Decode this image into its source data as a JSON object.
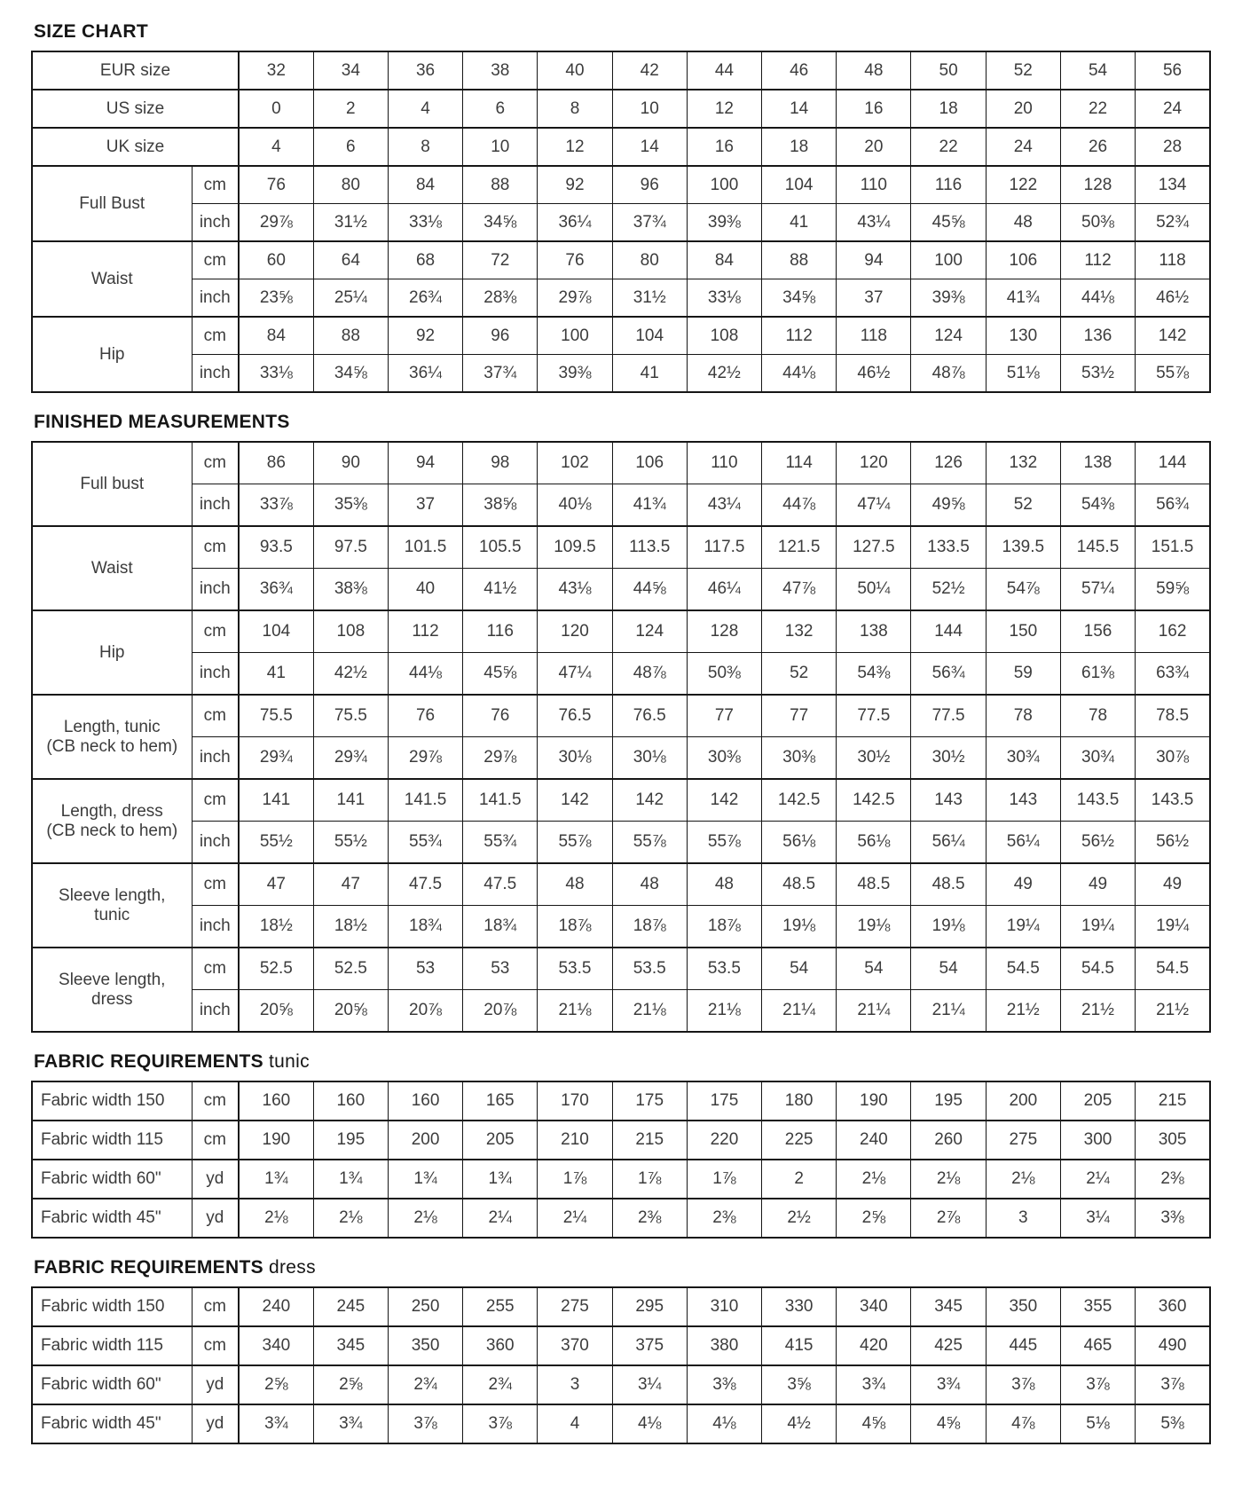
{
  "page": {
    "background": "#ffffff",
    "border_color": "#161616",
    "text_color": "#3c3c3c"
  },
  "sections": [
    {
      "id": "size-chart",
      "css": "sec-size",
      "title_main": "SIZE CHART",
      "title_suffix": "",
      "groups": [
        {
          "label": "EUR size",
          "sub": [
            {
              "unit": null,
              "values": [
                "32",
                "34",
                "36",
                "38",
                "40",
                "42",
                "44",
                "46",
                "48",
                "50",
                "52",
                "54",
                "56"
              ]
            }
          ]
        },
        {
          "label": "US size",
          "sub": [
            {
              "unit": null,
              "values": [
                "0",
                "2",
                "4",
                "6",
                "8",
                "10",
                "12",
                "14",
                "16",
                "18",
                "20",
                "22",
                "24"
              ]
            }
          ]
        },
        {
          "label": "UK size",
          "sub": [
            {
              "unit": null,
              "values": [
                "4",
                "6",
                "8",
                "10",
                "12",
                "14",
                "16",
                "18",
                "20",
                "22",
                "24",
                "26",
                "28"
              ]
            }
          ]
        },
        {
          "label": "Full Bust",
          "sub": [
            {
              "unit": "cm",
              "values": [
                "76",
                "80",
                "84",
                "88",
                "92",
                "96",
                "100",
                "104",
                "110",
                "116",
                "122",
                "128",
                "134"
              ]
            },
            {
              "unit": "inch",
              "values": [
                "29⅞",
                "31½",
                "33⅛",
                "34⅝",
                "36¼",
                "37¾",
                "39⅜",
                "41",
                "43¼",
                "45⅝",
                "48",
                "50⅜",
                "52¾"
              ]
            }
          ]
        },
        {
          "label": "Waist",
          "sub": [
            {
              "unit": "cm",
              "values": [
                "60",
                "64",
                "68",
                "72",
                "76",
                "80",
                "84",
                "88",
                "94",
                "100",
                "106",
                "112",
                "118"
              ]
            },
            {
              "unit": "inch",
              "values": [
                "23⅝",
                "25¼",
                "26¾",
                "28⅜",
                "29⅞",
                "31½",
                "33⅛",
                "34⅝",
                "37",
                "39⅜",
                "41¾",
                "44⅛",
                "46½"
              ]
            }
          ]
        },
        {
          "label": "Hip",
          "sub": [
            {
              "unit": "cm",
              "values": [
                "84",
                "88",
                "92",
                "96",
                "100",
                "104",
                "108",
                "112",
                "118",
                "124",
                "130",
                "136",
                "142"
              ]
            },
            {
              "unit": "inch",
              "values": [
                "33⅛",
                "34⅝",
                "36¼",
                "37¾",
                "39⅜",
                "41",
                "42½",
                "44⅛",
                "46½",
                "48⅞",
                "51⅛",
                "53½",
                "55⅞"
              ]
            }
          ]
        }
      ]
    },
    {
      "id": "finished-measurements",
      "css": "sec-finished",
      "title_main": "FINISHED MEASUREMENTS",
      "title_suffix": "",
      "groups": [
        {
          "label": "Full bust",
          "sub": [
            {
              "unit": "cm",
              "values": [
                "86",
                "90",
                "94",
                "98",
                "102",
                "106",
                "110",
                "114",
                "120",
                "126",
                "132",
                "138",
                "144"
              ]
            },
            {
              "unit": "inch",
              "values": [
                "33⅞",
                "35⅜",
                "37",
                "38⅝",
                "40⅛",
                "41¾",
                "43¼",
                "44⅞",
                "47¼",
                "49⅝",
                "52",
                "54⅜",
                "56¾"
              ]
            }
          ]
        },
        {
          "label": "Waist",
          "sub": [
            {
              "unit": "cm",
              "values": [
                "93.5",
                "97.5",
                "101.5",
                "105.5",
                "109.5",
                "113.5",
                "117.5",
                "121.5",
                "127.5",
                "133.5",
                "139.5",
                "145.5",
                "151.5"
              ]
            },
            {
              "unit": "inch",
              "values": [
                "36¾",
                "38⅜",
                "40",
                "41½",
                "43⅛",
                "44⅝",
                "46¼",
                "47⅞",
                "50¼",
                "52½",
                "54⅞",
                "57¼",
                "59⅝"
              ]
            }
          ]
        },
        {
          "label": "Hip",
          "sub": [
            {
              "unit": "cm",
              "values": [
                "104",
                "108",
                "112",
                "116",
                "120",
                "124",
                "128",
                "132",
                "138",
                "144",
                "150",
                "156",
                "162"
              ]
            },
            {
              "unit": "inch",
              "values": [
                "41",
                "42½",
                "44⅛",
                "45⅝",
                "47¼",
                "48⅞",
                "50⅜",
                "52",
                "54⅜",
                "56¾",
                "59",
                "61⅜",
                "63¾"
              ]
            }
          ]
        },
        {
          "label": "Length, tunic\n(CB neck to hem)",
          "sub": [
            {
              "unit": "cm",
              "values": [
                "75.5",
                "75.5",
                "76",
                "76",
                "76.5",
                "76.5",
                "77",
                "77",
                "77.5",
                "77.5",
                "78",
                "78",
                "78.5"
              ]
            },
            {
              "unit": "inch",
              "values": [
                "29¾",
                "29¾",
                "29⅞",
                "29⅞",
                "30⅛",
                "30⅛",
                "30⅜",
                "30⅜",
                "30½",
                "30½",
                "30¾",
                "30¾",
                "30⅞"
              ]
            }
          ]
        },
        {
          "label": "Length, dress\n(CB neck to hem)",
          "sub": [
            {
              "unit": "cm",
              "values": [
                "141",
                "141",
                "141.5",
                "141.5",
                "142",
                "142",
                "142",
                "142.5",
                "142.5",
                "143",
                "143",
                "143.5",
                "143.5"
              ]
            },
            {
              "unit": "inch",
              "values": [
                "55½",
                "55½",
                "55¾",
                "55¾",
                "55⅞",
                "55⅞",
                "55⅞",
                "56⅛",
                "56⅛",
                "56¼",
                "56¼",
                "56½",
                "56½"
              ]
            }
          ]
        },
        {
          "label": "Sleeve length,\ntunic",
          "sub": [
            {
              "unit": "cm",
              "values": [
                "47",
                "47",
                "47.5",
                "47.5",
                "48",
                "48",
                "48",
                "48.5",
                "48.5",
                "48.5",
                "49",
                "49",
                "49"
              ]
            },
            {
              "unit": "inch",
              "values": [
                "18½",
                "18½",
                "18¾",
                "18¾",
                "18⅞",
                "18⅞",
                "18⅞",
                "19⅛",
                "19⅛",
                "19⅛",
                "19¼",
                "19¼",
                "19¼"
              ]
            }
          ]
        },
        {
          "label": "Sleeve length,\ndress",
          "sub": [
            {
              "unit": "cm",
              "values": [
                "52.5",
                "52.5",
                "53",
                "53",
                "53.5",
                "53.5",
                "53.5",
                "54",
                "54",
                "54",
                "54.5",
                "54.5",
                "54.5"
              ]
            },
            {
              "unit": "inch",
              "values": [
                "20⅝",
                "20⅝",
                "20⅞",
                "20⅞",
                "21⅛",
                "21⅛",
                "21⅛",
                "21¼",
                "21¼",
                "21¼",
                "21½",
                "21½",
                "21½"
              ]
            }
          ]
        }
      ]
    },
    {
      "id": "fabric-requirements-tunic",
      "css": "sec-fabric",
      "title_main": "FABRIC REQUIREMENTS",
      "title_suffix": "tunic",
      "groups": [
        {
          "label": "Fabric width 150",
          "sub": [
            {
              "unit": "cm",
              "values": [
                "160",
                "160",
                "160",
                "165",
                "170",
                "175",
                "175",
                "180",
                "190",
                "195",
                "200",
                "205",
                "215"
              ]
            }
          ]
        },
        {
          "label": "Fabric width 115",
          "sub": [
            {
              "unit": "cm",
              "values": [
                "190",
                "195",
                "200",
                "205",
                "210",
                "215",
                "220",
                "225",
                "240",
                "260",
                "275",
                "300",
                "305"
              ]
            }
          ]
        },
        {
          "label": "Fabric width 60\"",
          "sub": [
            {
              "unit": "yd",
              "values": [
                "1¾",
                "1¾",
                "1¾",
                "1¾",
                "1⅞",
                "1⅞",
                "1⅞",
                "2",
                "2⅛",
                "2⅛",
                "2⅛",
                "2¼",
                "2⅜"
              ]
            }
          ]
        },
        {
          "label": "Fabric width 45\"",
          "sub": [
            {
              "unit": "yd",
              "values": [
                "2⅛",
                "2⅛",
                "2⅛",
                "2¼",
                "2¼",
                "2⅜",
                "2⅜",
                "2½",
                "2⅝",
                "2⅞",
                "3",
                "3¼",
                "3⅜"
              ]
            }
          ]
        }
      ]
    },
    {
      "id": "fabric-requirements-dress",
      "css": "sec-fabric",
      "title_main": "FABRIC REQUIREMENTS",
      "title_suffix": "dress",
      "groups": [
        {
          "label": "Fabric width 150",
          "sub": [
            {
              "unit": "cm",
              "values": [
                "240",
                "245",
                "250",
                "255",
                "275",
                "295",
                "310",
                "330",
                "340",
                "345",
                "350",
                "355",
                "360"
              ]
            }
          ]
        },
        {
          "label": "Fabric width 115",
          "sub": [
            {
              "unit": "cm",
              "values": [
                "340",
                "345",
                "350",
                "360",
                "370",
                "375",
                "380",
                "415",
                "420",
                "425",
                "445",
                "465",
                "490"
              ]
            }
          ]
        },
        {
          "label": "Fabric width 60\"",
          "sub": [
            {
              "unit": "yd",
              "values": [
                "2⅝",
                "2⅝",
                "2¾",
                "2¾",
                "3",
                "3¼",
                "3⅜",
                "3⅝",
                "3¾",
                "3¾",
                "3⅞",
                "3⅞",
                "3⅞"
              ]
            }
          ]
        },
        {
          "label": "Fabric width 45\"",
          "sub": [
            {
              "unit": "yd",
              "values": [
                "3¾",
                "3¾",
                "3⅞",
                "3⅞",
                "4",
                "4⅛",
                "4⅛",
                "4½",
                "4⅝",
                "4⅝",
                "4⅞",
                "5⅛",
                "5⅜"
              ]
            }
          ]
        }
      ]
    }
  ]
}
